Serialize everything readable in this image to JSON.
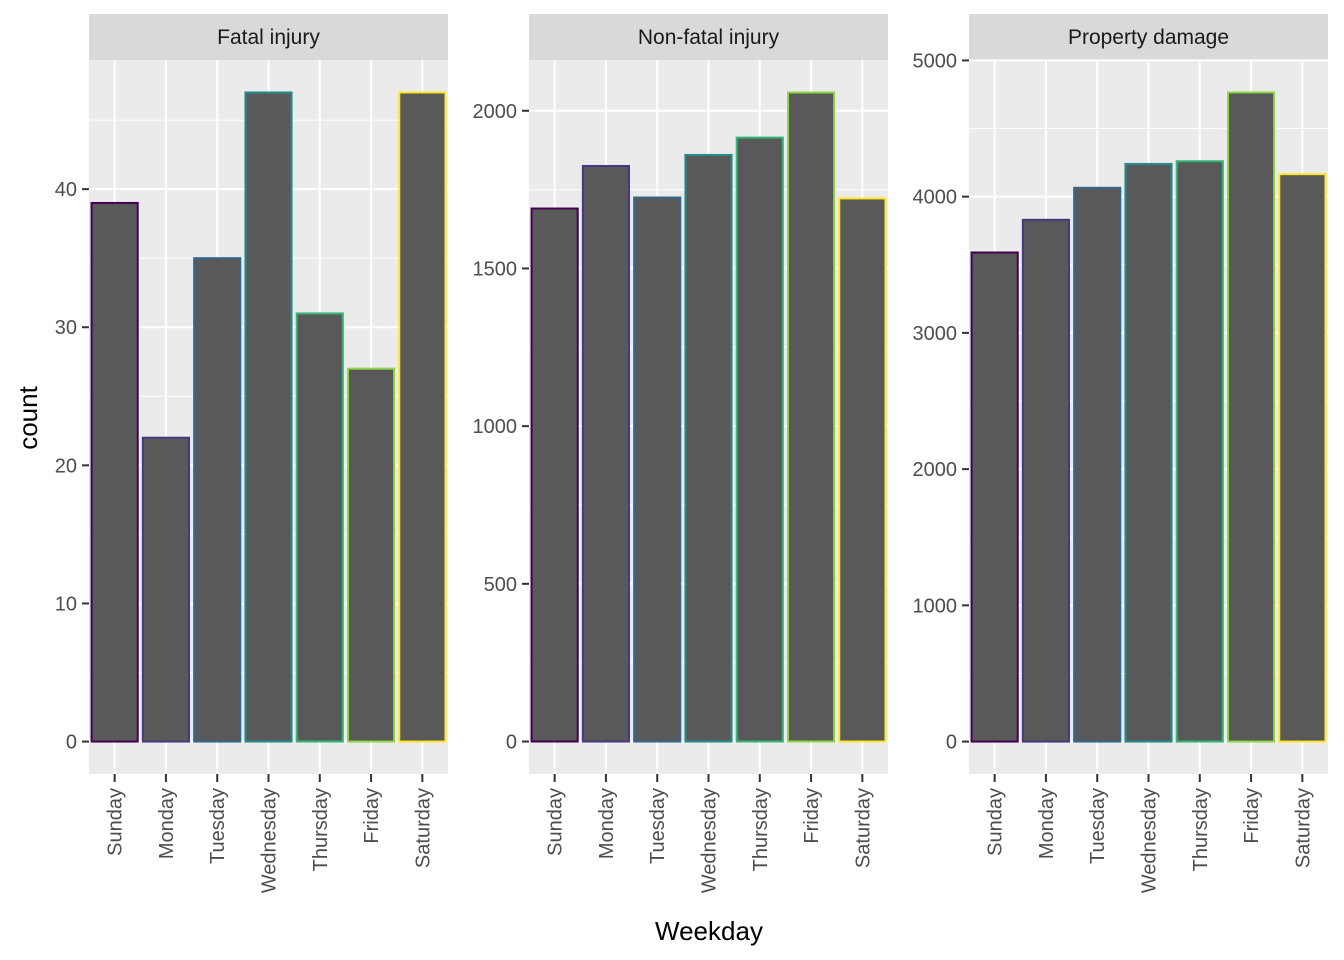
{
  "chart_data": {
    "type": "bar",
    "xlabel": "Weekday",
    "ylabel": "count",
    "categories": [
      "Sunday",
      "Monday",
      "Tuesday",
      "Wednesday",
      "Thursday",
      "Friday",
      "Saturday"
    ],
    "outline_colors": [
      "#440154",
      "#443983",
      "#31688e",
      "#21908d",
      "#35b779",
      "#8fd744",
      "#fde725"
    ],
    "bar_fill": "#595959",
    "panel_background": "#ebebeb",
    "strip_background": "#d9d9d9",
    "grid": true,
    "legend": "none",
    "facets": [
      {
        "title": "Fatal injury",
        "values": [
          39,
          22,
          35,
          47,
          31,
          27,
          47
        ],
        "ylim": [
          -2.35,
          49.35
        ],
        "major_ticks": [
          0,
          10,
          20,
          30,
          40
        ],
        "minor_ticks": [
          5,
          15,
          25,
          35,
          45
        ],
        "tick_labels": [
          "0",
          "10",
          "20",
          "30",
          "40"
        ]
      },
      {
        "title": "Non-fatal injury",
        "values": [
          1690,
          1825,
          1725,
          1860,
          1915,
          2058,
          1722
        ],
        "ylim": [
          -103,
          2161
        ],
        "major_ticks": [
          0,
          500,
          1000,
          1500,
          2000
        ],
        "minor_ticks": [
          250,
          750,
          1250,
          1750
        ],
        "tick_labels": [
          "0",
          "500",
          "1000",
          "1500",
          "2000"
        ]
      },
      {
        "title": "Property damage",
        "values": [
          3590,
          3830,
          4065,
          4240,
          4260,
          4765,
          4165
        ],
        "ylim": [
          -238,
          5003
        ],
        "major_ticks": [
          0,
          1000,
          2000,
          3000,
          4000,
          5000
        ],
        "minor_ticks": [
          500,
          1500,
          2500,
          3500,
          4500
        ],
        "tick_labels": [
          "0",
          "1000",
          "2000",
          "3000",
          "4000",
          "5000"
        ]
      }
    ]
  }
}
